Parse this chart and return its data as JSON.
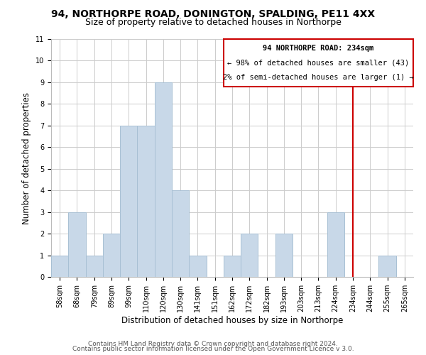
{
  "title": "94, NORTHORPE ROAD, DONINGTON, SPALDING, PE11 4XX",
  "subtitle": "Size of property relative to detached houses in Northorpe",
  "xlabel": "Distribution of detached houses by size in Northorpe",
  "ylabel": "Number of detached properties",
  "bar_labels": [
    "58sqm",
    "68sqm",
    "79sqm",
    "89sqm",
    "99sqm",
    "110sqm",
    "120sqm",
    "130sqm",
    "141sqm",
    "151sqm",
    "162sqm",
    "172sqm",
    "182sqm",
    "193sqm",
    "203sqm",
    "213sqm",
    "224sqm",
    "234sqm",
    "244sqm",
    "255sqm",
    "265sqm"
  ],
  "bar_heights": [
    1,
    3,
    1,
    2,
    7,
    7,
    9,
    4,
    1,
    0,
    1,
    2,
    0,
    2,
    0,
    0,
    3,
    0,
    0,
    1,
    0
  ],
  "bar_color": "#c8d8e8",
  "bar_edge_color": "#a8c0d4",
  "ylim": [
    0,
    11
  ],
  "yticks": [
    0,
    1,
    2,
    3,
    4,
    5,
    6,
    7,
    8,
    9,
    10,
    11
  ],
  "grid_color": "#cccccc",
  "annotation_line_index": 17,
  "annotation_line_color": "#cc0000",
  "annotation_box_text_line1": "94 NORTHORPE ROAD: 234sqm",
  "annotation_box_text_line2": "← 98% of detached houses are smaller (43)",
  "annotation_box_text_line3": "2% of semi-detached houses are larger (1) →",
  "footer_line1": "Contains HM Land Registry data © Crown copyright and database right 2024.",
  "footer_line2": "Contains public sector information licensed under the Open Government Licence v 3.0.",
  "background_color": "#ffffff",
  "title_fontsize": 10,
  "subtitle_fontsize": 9,
  "axis_label_fontsize": 8.5,
  "tick_fontsize": 7,
  "annotation_fontsize": 7.5,
  "footer_fontsize": 6.5
}
